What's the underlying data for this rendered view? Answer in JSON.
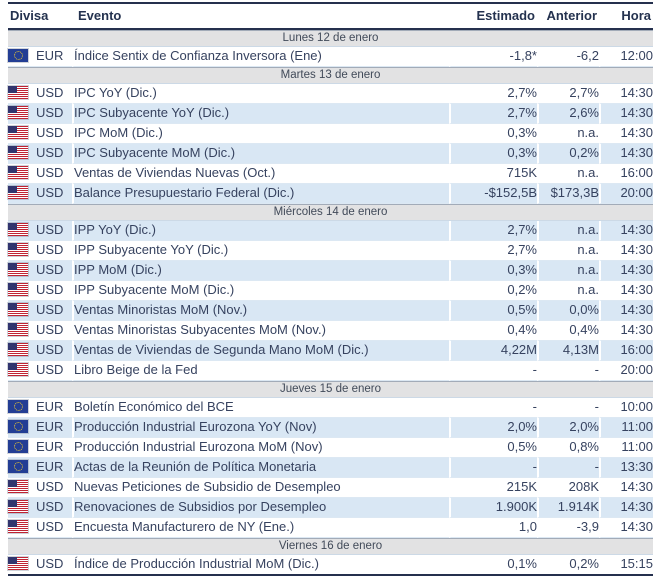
{
  "colors": {
    "row_stripe_blue": "#d9e7f4",
    "section_bar_gray": "#e2e2e3",
    "text_navy": "#36425f",
    "header_navy": "#24324f",
    "rule_navy": "#25304e",
    "eu_flag_blue": "#233e94",
    "eu_flag_stars": "#f5cf2e",
    "us_flag_red": "#bf2333",
    "us_flag_canton": "#31356e"
  },
  "table": {
    "headers": {
      "divisa": "Divisa",
      "evento": "Evento",
      "estimado": "Estimado",
      "anterior": "Anterior",
      "hora": "Hora"
    },
    "sections": [
      {
        "date": "Lunes 12 de enero",
        "rows": [
          {
            "flag": "eu",
            "currency": "EUR",
            "evento": "Índice Sentix de Confianza Inversora (Ene)",
            "estimado": "-1,8*",
            "anterior": "-6,2",
            "hora": "12:00"
          }
        ]
      },
      {
        "date": "Martes 13 de enero",
        "rows": [
          {
            "flag": "us",
            "currency": "USD",
            "evento": "IPC YoY (Dic.)",
            "estimado": "2,7%",
            "anterior": "2,7%",
            "hora": "14:30"
          },
          {
            "flag": "us",
            "currency": "USD",
            "evento": "IPC Subyacente YoY (Dic.)",
            "estimado": "2,7%",
            "anterior": "2,6%",
            "hora": "14:30"
          },
          {
            "flag": "us",
            "currency": "USD",
            "evento": "IPC MoM (Dic.)",
            "estimado": "0,3%",
            "anterior": "n.a.",
            "hora": "14:30"
          },
          {
            "flag": "us",
            "currency": "USD",
            "evento": "IPC Subyacente MoM (Dic.)",
            "estimado": "0,3%",
            "anterior": "0,2%",
            "hora": "14:30"
          },
          {
            "flag": "us",
            "currency": "USD",
            "evento": "Ventas de Viviendas Nuevas (Oct.)",
            "estimado": "715K",
            "anterior": "n.a.",
            "hora": "16:00"
          },
          {
            "flag": "us",
            "currency": "USD",
            "evento": "Balance Presupuestario Federal (Dic.)",
            "estimado": "-$152,5B",
            "anterior": "$173,3B",
            "hora": "20:00"
          }
        ]
      },
      {
        "date": "Miércoles 14 de enero",
        "rows": [
          {
            "flag": "us",
            "currency": "USD",
            "evento": "IPP YoY (Dic.)",
            "estimado": "2,7%",
            "anterior": "n.a.",
            "hora": "14:30"
          },
          {
            "flag": "us",
            "currency": "USD",
            "evento": "IPP Subyacente YoY (Dic.)",
            "estimado": "2,7%",
            "anterior": "n.a.",
            "hora": "14:30"
          },
          {
            "flag": "us",
            "currency": "USD",
            "evento": "IPP MoM (Dic.)",
            "estimado": "0,3%",
            "anterior": "n.a.",
            "hora": "14:30"
          },
          {
            "flag": "us",
            "currency": "USD",
            "evento": "IPP Subyacente MoM (Dic.)",
            "estimado": "0,2%",
            "anterior": "n.a.",
            "hora": "14:30"
          },
          {
            "flag": "us",
            "currency": "USD",
            "evento": "Ventas Minoristas MoM (Nov.)",
            "estimado": "0,5%",
            "anterior": "0,0%",
            "hora": "14:30"
          },
          {
            "flag": "us",
            "currency": "USD",
            "evento": "Ventas Minoristas Subyacentes MoM (Nov.)",
            "estimado": "0,4%",
            "anterior": "0,4%",
            "hora": "14:30"
          },
          {
            "flag": "us",
            "currency": "USD",
            "evento": "Ventas de Viviendas de Segunda Mano MoM (Dic.)",
            "estimado": "4,22M",
            "anterior": "4,13M",
            "hora": "16:00"
          },
          {
            "flag": "us",
            "currency": "USD",
            "evento": "Libro Beige de la Fed",
            "estimado": "-",
            "anterior": "-",
            "hora": "20:00"
          }
        ]
      },
      {
        "date": "Jueves 15 de enero",
        "rows": [
          {
            "flag": "eu",
            "currency": "EUR",
            "evento": "Boletín Económico del BCE",
            "estimado": "-",
            "anterior": "-",
            "hora": "10:00"
          },
          {
            "flag": "eu",
            "currency": "EUR",
            "evento": "Producción Industrial Eurozona YoY (Nov)",
            "estimado": "2,0%",
            "anterior": "2,0%",
            "hora": "11:00"
          },
          {
            "flag": "eu",
            "currency": "EUR",
            "evento": "Producción Industrial Eurozona MoM (Nov)",
            "estimado": "0,5%",
            "anterior": "0,8%",
            "hora": "11:00"
          },
          {
            "flag": "eu",
            "currency": "EUR",
            "evento": "Actas de la Reunión de Política Monetaria",
            "estimado": "-",
            "anterior": "-",
            "hora": "13:30"
          },
          {
            "flag": "us",
            "currency": "USD",
            "evento": "Nuevas Peticiones de Subsidio de Desempleo",
            "estimado": "215K",
            "anterior": "208K",
            "hora": "14:30"
          },
          {
            "flag": "us",
            "currency": "USD",
            "evento": "Renovaciones de Subsidios por Desempleo",
            "estimado": "1.900K",
            "anterior": "1.914K",
            "hora": "14:30"
          },
          {
            "flag": "us",
            "currency": "USD",
            "evento": "Encuesta Manufacturero de NY (Ene.)",
            "estimado": "1,0",
            "anterior": "-3,9",
            "hora": "14:30"
          }
        ]
      },
      {
        "date": "Viernes 16 de enero",
        "rows": [
          {
            "flag": "us",
            "currency": "USD",
            "evento": "Índice de Producción Industrial MoM (Dic.)",
            "estimado": "0,1%",
            "anterior": "0,2%",
            "hora": "15:15"
          }
        ]
      }
    ]
  }
}
